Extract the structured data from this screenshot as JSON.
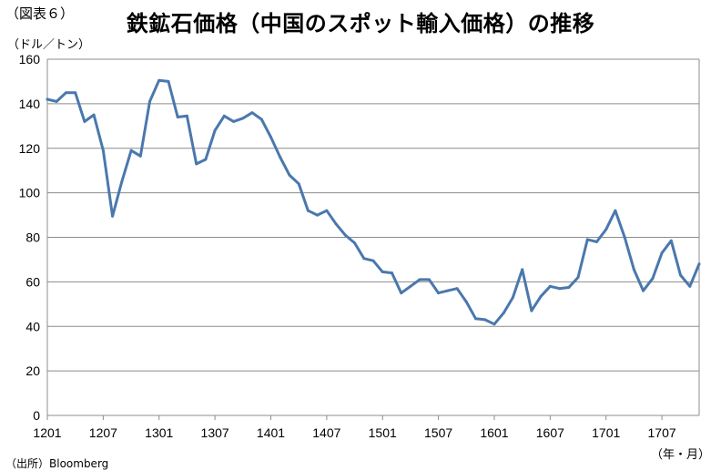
{
  "figure_label": "（図表６）",
  "title": "鉄鉱石価格（中国のスポット輸入価格）の推移",
  "y_unit": "（ドル／トン）",
  "x_unit": "（年・月）",
  "source": "（出所）Bloomberg",
  "colors": {
    "line": "#4a78ad",
    "grid": "#8c8c8c",
    "axis": "#8c8c8c"
  },
  "chart_data": {
    "type": "line",
    "title": "鉄鉱石価格（中国のスポット輸入価格）の推移",
    "xlabel": "（年・月）",
    "ylabel": "（ドル／トン）",
    "ylim": [
      0,
      160
    ],
    "y_ticks": [
      0,
      20,
      40,
      60,
      80,
      100,
      120,
      140,
      160
    ],
    "x_tick_labels": [
      "1201",
      "1207",
      "1301",
      "1307",
      "1401",
      "1407",
      "1501",
      "1507",
      "1601",
      "1607",
      "1701",
      "1707"
    ],
    "grid": true,
    "legend": "none",
    "x": [
      "1201",
      "1202",
      "1203",
      "1204",
      "1205",
      "1206",
      "1207",
      "1208",
      "1209",
      "1210",
      "1211",
      "1212",
      "1301",
      "1302",
      "1303",
      "1304",
      "1305",
      "1306",
      "1307",
      "1308",
      "1309",
      "1310",
      "1311",
      "1312",
      "1401",
      "1402",
      "1403",
      "1404",
      "1405",
      "1406",
      "1407",
      "1408",
      "1409",
      "1410",
      "1411",
      "1412",
      "1501",
      "1502",
      "1503",
      "1504",
      "1505",
      "1506",
      "1507",
      "1508",
      "1509",
      "1510",
      "1511",
      "1512",
      "1601",
      "1602",
      "1603",
      "1604",
      "1605",
      "1606",
      "1607",
      "1608",
      "1609",
      "1610",
      "1611",
      "1612",
      "1701",
      "1702",
      "1703",
      "1704",
      "1705",
      "1706",
      "1707",
      "1708",
      "1709",
      "1710",
      "1711"
    ],
    "series": [
      {
        "values": [
          142,
          141,
          145,
          145,
          132,
          135,
          119,
          89.5,
          105,
          119,
          116.5,
          141,
          150.5,
          150,
          134,
          134.5,
          113,
          115,
          128,
          134.5,
          132,
          133.5,
          136,
          133,
          125,
          116,
          108,
          104,
          92,
          90,
          92,
          86,
          81,
          77.5,
          70.5,
          69.5,
          64.5,
          64,
          55,
          58,
          61,
          61,
          55,
          56,
          57,
          51,
          43.5,
          43,
          41,
          46,
          53,
          65.5,
          47,
          53.5,
          58,
          57,
          57.5,
          62,
          79,
          78,
          83.5,
          92,
          80,
          65.5,
          56,
          61.5,
          73,
          78.5,
          63,
          58,
          68
        ]
      }
    ]
  }
}
